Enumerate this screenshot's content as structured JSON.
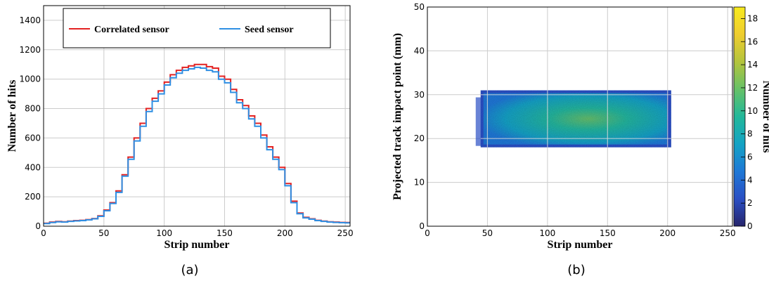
{
  "panels": [
    {
      "caption": "(a)"
    },
    {
      "caption": "(b)"
    }
  ],
  "chart_data": [
    {
      "type": "line",
      "subtype": "step-histogram",
      "xlabel": "Strip number",
      "ylabel": "Number of hits",
      "xlim": [
        0,
        254
      ],
      "ylim": [
        0,
        1500
      ],
      "xticks": [
        0,
        50,
        100,
        150,
        200,
        250
      ],
      "yticks": [
        0,
        200,
        400,
        600,
        800,
        1000,
        1200,
        1400
      ],
      "grid": true,
      "legend_position": "top",
      "x": [
        0,
        5,
        10,
        15,
        20,
        25,
        30,
        35,
        40,
        45,
        50,
        55,
        60,
        65,
        70,
        75,
        80,
        85,
        90,
        95,
        100,
        105,
        110,
        115,
        120,
        125,
        130,
        135,
        140,
        145,
        150,
        155,
        160,
        165,
        170,
        175,
        180,
        185,
        190,
        195,
        200,
        205,
        210,
        215,
        220,
        225,
        230,
        235,
        240,
        245,
        250,
        254
      ],
      "series": [
        {
          "name": "Correlated sensor",
          "color": "#e32222",
          "values": [
            20,
            28,
            32,
            30,
            35,
            38,
            40,
            45,
            52,
            70,
            110,
            160,
            240,
            350,
            470,
            600,
            700,
            800,
            870,
            920,
            980,
            1030,
            1060,
            1080,
            1090,
            1100,
            1100,
            1085,
            1075,
            1020,
            1000,
            930,
            860,
            820,
            750,
            700,
            620,
            540,
            470,
            400,
            290,
            170,
            90,
            60,
            50,
            40,
            35,
            30,
            28,
            26,
            25,
            20
          ]
        },
        {
          "name": "Seed sensor",
          "color": "#2f8fe3",
          "values": [
            18,
            25,
            30,
            28,
            33,
            36,
            38,
            43,
            50,
            67,
            105,
            155,
            230,
            340,
            455,
            580,
            680,
            780,
            850,
            900,
            960,
            1010,
            1040,
            1060,
            1070,
            1080,
            1075,
            1060,
            1050,
            1000,
            975,
            910,
            840,
            800,
            730,
            680,
            600,
            520,
            455,
            385,
            275,
            160,
            85,
            57,
            48,
            38,
            33,
            28,
            26,
            24,
            23,
            18
          ]
        }
      ]
    },
    {
      "type": "heatmap",
      "xlabel": "Strip number",
      "ylabel": "Projected track impact point (mm)",
      "zlabel": "Number of hits",
      "xlim": [
        0,
        254
      ],
      "ylim": [
        0,
        50
      ],
      "zlim": [
        0,
        19
      ],
      "xticks": [
        0,
        50,
        100,
        150,
        200,
        250
      ],
      "yticks": [
        0,
        10,
        20,
        30,
        40,
        50
      ],
      "zticks": [
        0,
        2,
        4,
        6,
        8,
        10,
        12,
        14,
        16,
        18
      ],
      "grid": true,
      "occupied_region": {
        "x_range": [
          42,
          203
        ],
        "y_range": [
          18,
          31
        ]
      },
      "peak_region": {
        "x": 135,
        "y": 25
      },
      "colormap": [
        "#26246b",
        "#2a4fc4",
        "#1e78d6",
        "#13a3c4",
        "#22b89a",
        "#66c167",
        "#b4c43c",
        "#efcd2f",
        "#f7ea1e"
      ]
    }
  ]
}
